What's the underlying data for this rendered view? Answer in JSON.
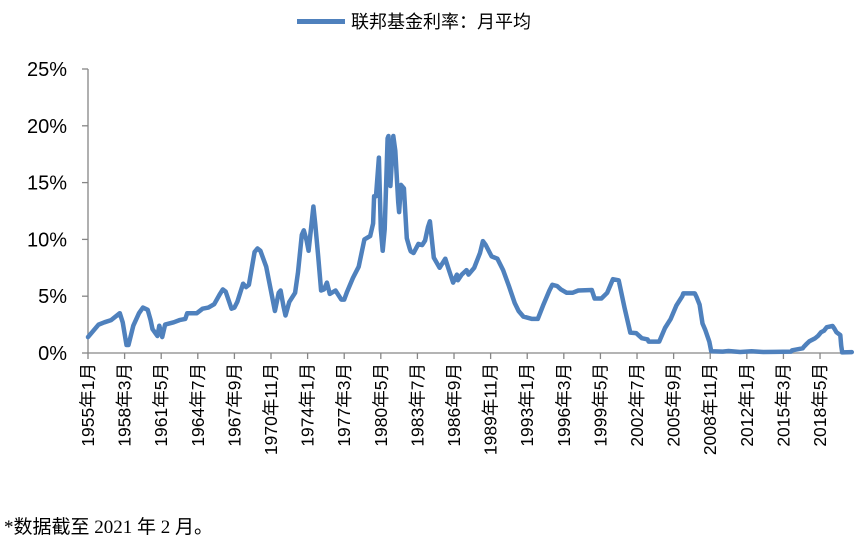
{
  "chart_data": {
    "type": "line",
    "title": "",
    "legend": {
      "label": "联邦基金利率：月平均",
      "position": "top"
    },
    "series_color": "#4f81bd",
    "axis_color": "#868686",
    "xlabel": "",
    "ylabel": "",
    "ylim": [
      0,
      25
    ],
    "y_ticks": [
      0,
      5,
      10,
      15,
      20,
      25
    ],
    "y_tick_labels": [
      "0%",
      "5%",
      "10%",
      "15%",
      "20%",
      "25%"
    ],
    "x_range": [
      "1955-01",
      "2021-02"
    ],
    "x_tick_labels": [
      "1955年1月",
      "1958年3月",
      "1961年5月",
      "1964年7月",
      "1967年9月",
      "1970年11月",
      "1974年1月",
      "1977年3月",
      "1980年5月",
      "1983年7月",
      "1986年9月",
      "1989年11月",
      "1993年1月",
      "1996年3月",
      "1999年5月",
      "2002年7月",
      "2005年9月",
      "2008年11月",
      "2012年1月",
      "2015年3月",
      "2018年5月"
    ],
    "x_tick_interval_months": 38,
    "series": [
      {
        "name": "联邦基金利率：月平均",
        "unit": "%",
        "points": [
          [
            "1955-01",
            1.4
          ],
          [
            "1955-12",
            2.5
          ],
          [
            "1956-06",
            2.7
          ],
          [
            "1957-01",
            2.9
          ],
          [
            "1957-10",
            3.5
          ],
          [
            "1958-01",
            2.7
          ],
          [
            "1958-05",
            0.7
          ],
          [
            "1958-07",
            0.7
          ],
          [
            "1958-12",
            2.4
          ],
          [
            "1959-06",
            3.5
          ],
          [
            "1959-10",
            4.0
          ],
          [
            "1960-03",
            3.8
          ],
          [
            "1960-06",
            2.9
          ],
          [
            "1960-08",
            2.1
          ],
          [
            "1961-01",
            1.5
          ],
          [
            "1961-03",
            2.4
          ],
          [
            "1961-06",
            1.4
          ],
          [
            "1961-09",
            2.5
          ],
          [
            "1962-06",
            2.7
          ],
          [
            "1962-12",
            2.9
          ],
          [
            "1963-06",
            3.0
          ],
          [
            "1963-08",
            3.5
          ],
          [
            "1964-06",
            3.5
          ],
          [
            "1964-12",
            3.9
          ],
          [
            "1965-06",
            4.0
          ],
          [
            "1965-12",
            4.3
          ],
          [
            "1966-06",
            5.2
          ],
          [
            "1966-09",
            5.6
          ],
          [
            "1966-12",
            5.4
          ],
          [
            "1967-06",
            3.9
          ],
          [
            "1967-09",
            4.0
          ],
          [
            "1967-12",
            4.5
          ],
          [
            "1968-06",
            6.1
          ],
          [
            "1968-09",
            5.8
          ],
          [
            "1968-12",
            6.0
          ],
          [
            "1969-06",
            8.9
          ],
          [
            "1969-09",
            9.2
          ],
          [
            "1969-12",
            9.0
          ],
          [
            "1970-06",
            7.6
          ],
          [
            "1970-12",
            5.0
          ],
          [
            "1971-03",
            3.7
          ],
          [
            "1971-07",
            5.3
          ],
          [
            "1971-09",
            5.5
          ],
          [
            "1971-12",
            4.1
          ],
          [
            "1972-02",
            3.3
          ],
          [
            "1972-06",
            4.5
          ],
          [
            "1972-12",
            5.3
          ],
          [
            "1973-03",
            7.1
          ],
          [
            "1973-07",
            10.4
          ],
          [
            "1973-09",
            10.8
          ],
          [
            "1973-12",
            9.9
          ],
          [
            "1974-02",
            9.0
          ],
          [
            "1974-07",
            12.9
          ],
          [
            "1974-09",
            11.3
          ],
          [
            "1974-12",
            8.5
          ],
          [
            "1975-03",
            5.5
          ],
          [
            "1975-06",
            5.6
          ],
          [
            "1975-09",
            6.2
          ],
          [
            "1975-12",
            5.2
          ],
          [
            "1976-06",
            5.5
          ],
          [
            "1976-12",
            4.7
          ],
          [
            "1977-03",
            4.7
          ],
          [
            "1977-06",
            5.4
          ],
          [
            "1977-12",
            6.6
          ],
          [
            "1978-06",
            7.6
          ],
          [
            "1978-12",
            10.0
          ],
          [
            "1979-06",
            10.3
          ],
          [
            "1979-09",
            11.4
          ],
          [
            "1979-10",
            13.8
          ],
          [
            "1979-12",
            13.8
          ],
          [
            "1980-03",
            17.2
          ],
          [
            "1980-05",
            10.9
          ],
          [
            "1980-07",
            9.0
          ],
          [
            "1980-09",
            10.9
          ],
          [
            "1980-12",
            18.9
          ],
          [
            "1981-01",
            19.1
          ],
          [
            "1981-03",
            14.7
          ],
          [
            "1981-06",
            19.1
          ],
          [
            "1981-08",
            17.8
          ],
          [
            "1981-11",
            13.3
          ],
          [
            "1981-12",
            12.4
          ],
          [
            "1982-02",
            14.8
          ],
          [
            "1982-05",
            14.5
          ],
          [
            "1982-08",
            10.1
          ],
          [
            "1982-11",
            9.2
          ],
          [
            "1982-12",
            8.95
          ],
          [
            "1983-03",
            8.8
          ],
          [
            "1983-08",
            9.6
          ],
          [
            "1983-12",
            9.5
          ],
          [
            "1984-03",
            9.9
          ],
          [
            "1984-06",
            11.1
          ],
          [
            "1984-08",
            11.6
          ],
          [
            "1984-12",
            8.4
          ],
          [
            "1985-06",
            7.5
          ],
          [
            "1985-12",
            8.3
          ],
          [
            "1986-03",
            7.5
          ],
          [
            "1986-08",
            6.2
          ],
          [
            "1986-12",
            6.9
          ],
          [
            "1987-01",
            6.4
          ],
          [
            "1987-05",
            6.9
          ],
          [
            "1987-10",
            7.3
          ],
          [
            "1987-12",
            6.9
          ],
          [
            "1988-06",
            7.5
          ],
          [
            "1988-12",
            8.8
          ],
          [
            "1989-03",
            9.85
          ],
          [
            "1989-06",
            9.5
          ],
          [
            "1989-12",
            8.5
          ],
          [
            "1990-06",
            8.3
          ],
          [
            "1990-12",
            7.3
          ],
          [
            "1991-06",
            5.9
          ],
          [
            "1991-12",
            4.4
          ],
          [
            "1992-04",
            3.7
          ],
          [
            "1992-09",
            3.2
          ],
          [
            "1993-06",
            3.0
          ],
          [
            "1993-12",
            3.0
          ],
          [
            "1994-06",
            4.3
          ],
          [
            "1994-12",
            5.5
          ],
          [
            "1995-03",
            6.0
          ],
          [
            "1995-08",
            5.9
          ],
          [
            "1995-12",
            5.6
          ],
          [
            "1996-06",
            5.3
          ],
          [
            "1996-12",
            5.3
          ],
          [
            "1997-06",
            5.5
          ],
          [
            "1998-08",
            5.55
          ],
          [
            "1998-11",
            4.8
          ],
          [
            "1999-06",
            4.8
          ],
          [
            "1999-12",
            5.3
          ],
          [
            "2000-06",
            6.5
          ],
          [
            "2000-12",
            6.4
          ],
          [
            "2001-06",
            4.0
          ],
          [
            "2001-12",
            1.8
          ],
          [
            "2002-06",
            1.75
          ],
          [
            "2002-12",
            1.3
          ],
          [
            "2003-06",
            1.2
          ],
          [
            "2003-07",
            1.0
          ],
          [
            "2004-06",
            1.0
          ],
          [
            "2004-12",
            2.2
          ],
          [
            "2005-06",
            3.0
          ],
          [
            "2005-12",
            4.2
          ],
          [
            "2006-06",
            5.0
          ],
          [
            "2006-07",
            5.25
          ],
          [
            "2007-07",
            5.25
          ],
          [
            "2007-09",
            4.9
          ],
          [
            "2007-12",
            4.25
          ],
          [
            "2008-03",
            2.6
          ],
          [
            "2008-06",
            2.0
          ],
          [
            "2008-10",
            1.0
          ],
          [
            "2008-12",
            0.16
          ],
          [
            "2009-12",
            0.12
          ],
          [
            "2010-06",
            0.18
          ],
          [
            "2011-06",
            0.09
          ],
          [
            "2012-06",
            0.16
          ],
          [
            "2013-06",
            0.09
          ],
          [
            "2014-06",
            0.1
          ],
          [
            "2015-11",
            0.12
          ],
          [
            "2015-12",
            0.24
          ],
          [
            "2016-11",
            0.41
          ],
          [
            "2016-12",
            0.54
          ],
          [
            "2017-03",
            0.79
          ],
          [
            "2017-06",
            1.04
          ],
          [
            "2017-12",
            1.3
          ],
          [
            "2018-03",
            1.51
          ],
          [
            "2018-06",
            1.82
          ],
          [
            "2018-09",
            1.95
          ],
          [
            "2018-12",
            2.27
          ],
          [
            "2019-06",
            2.38
          ],
          [
            "2019-08",
            2.13
          ],
          [
            "2019-10",
            1.83
          ],
          [
            "2020-02",
            1.58
          ],
          [
            "2020-03",
            0.65
          ],
          [
            "2020-04",
            0.05
          ],
          [
            "2021-02",
            0.08
          ]
        ]
      }
    ]
  },
  "footnote": "*数据截至 2021 年 2 月。"
}
